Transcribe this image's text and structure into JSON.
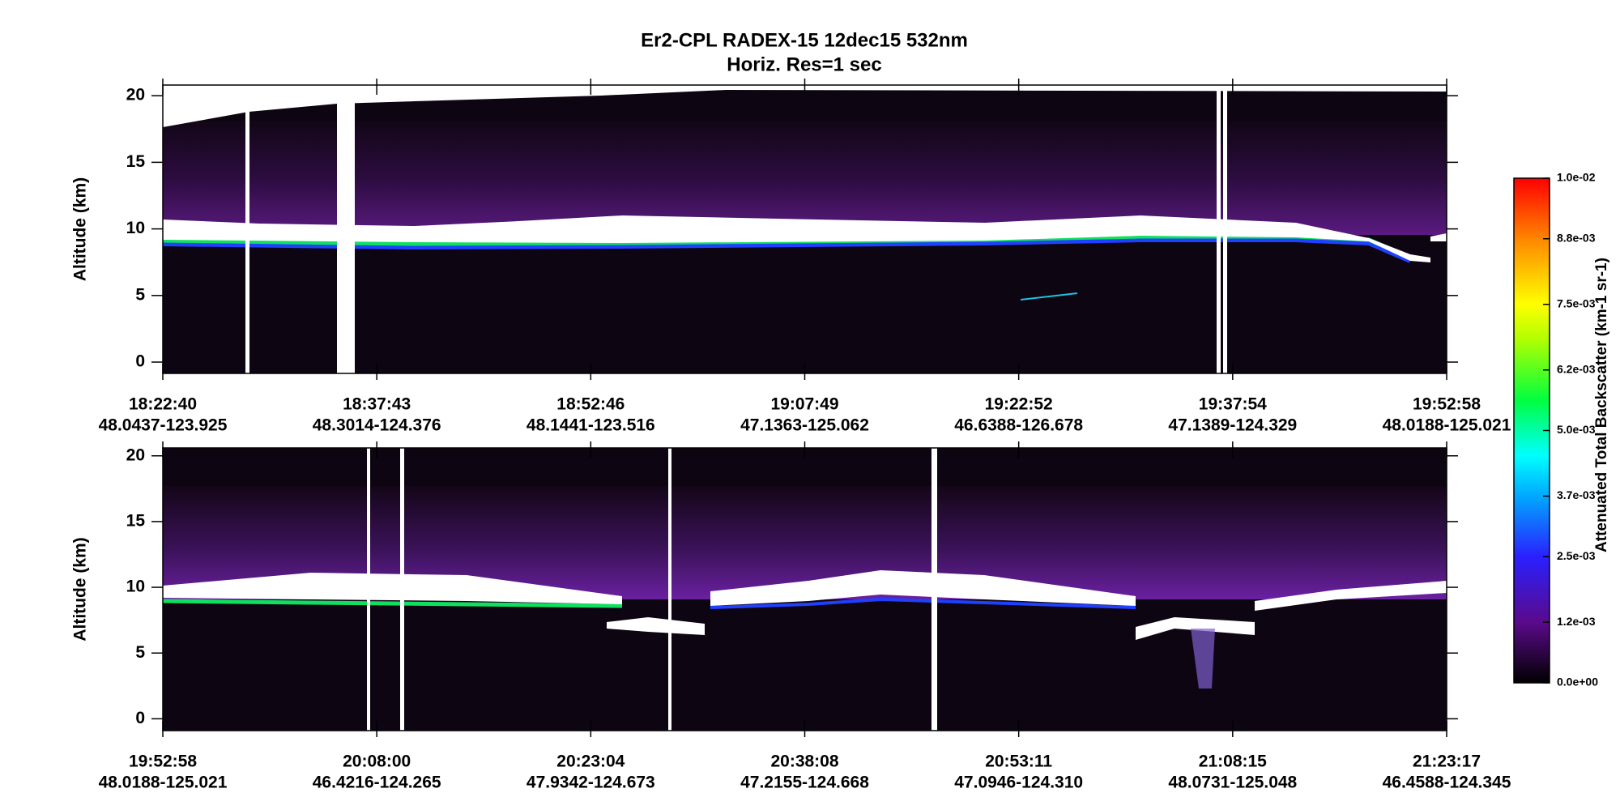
{
  "header": {
    "title": "Er2-CPL  RADEX-15  12dec15  532nm",
    "subtitle": "Horiz. Res=1 sec"
  },
  "chart_data": [
    {
      "type": "curtain",
      "ylabel": "Altitude (km)",
      "ylim": [
        -0.85,
        20.8
      ],
      "yticks": [
        0,
        5,
        10,
        15,
        20
      ],
      "categories": [
        "18:22:40",
        "18:37:43",
        "18:52:46",
        "19:07:49",
        "19:22:52",
        "19:37:54",
        "19:52:58"
      ],
      "locations": [
        "48.0437-123.925",
        "48.3014-124.376",
        "48.1441-123.516",
        "47.1363-125.062",
        "46.6388-126.678",
        "47.1389-124.329",
        "48.0188-125.021"
      ]
    },
    {
      "type": "curtain",
      "ylabel": "Altitude (km)",
      "ylim": [
        -0.9,
        20.6
      ],
      "yticks": [
        0,
        5,
        10,
        15,
        20
      ],
      "categories": [
        "19:52:58",
        "20:08:00",
        "20:23:04",
        "20:38:08",
        "20:53:11",
        "21:08:15",
        "21:23:17"
      ],
      "locations": [
        "48.0188-125.021",
        "46.4216-124.265",
        "47.9342-124.673",
        "47.2155-124.668",
        "47.0946-124.310",
        "48.0731-125.048",
        "46.4588-124.345"
      ]
    }
  ],
  "colorbar": {
    "label": "Attenuated Total Backscatter (km-1 sr-1)",
    "lim": [
      0,
      0.01
    ],
    "ticks": [
      {
        "value": 0,
        "label": "0.0e+00"
      },
      {
        "value": 0.0012,
        "label": "1.2e-03"
      },
      {
        "value": 0.0025,
        "label": "2.5e-03"
      },
      {
        "value": 0.0037,
        "label": "3.7e-03"
      },
      {
        "value": 0.005,
        "label": "5.0e-03"
      },
      {
        "value": 0.0062,
        "label": "6.2e-03"
      },
      {
        "value": 0.0075,
        "label": "7.5e-03"
      },
      {
        "value": 0.0088,
        "label": "8.8e-03"
      },
      {
        "value": 0.01,
        "label": "1.0e-02"
      }
    ]
  }
}
